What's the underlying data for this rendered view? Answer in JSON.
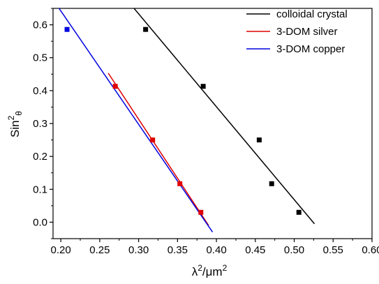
{
  "chart_data": {
    "type": "scatter",
    "x_axis": {
      "label_main": "λ",
      "label_sup1": "2",
      "label_mid": "/μm",
      "label_sup2": "2",
      "range": [
        0.19,
        0.6
      ],
      "ticks": [
        "0.20",
        "0.25",
        "0.30",
        "0.35",
        "0.40",
        "0.45",
        "0.50",
        "0.55",
        "0.60"
      ],
      "tick_values": [
        0.2,
        0.25,
        0.3,
        0.35,
        0.4,
        0.45,
        0.5,
        0.55,
        0.6
      ]
    },
    "y_axis": {
      "label_main": "Sin",
      "label_sup": "2",
      "label_sub": "θ",
      "range": [
        -0.05,
        0.65
      ],
      "ticks": [
        "0.0",
        "0.1",
        "0.2",
        "0.3",
        "0.4",
        "0.5",
        "0.6"
      ],
      "tick_values": [
        0.0,
        0.1,
        0.2,
        0.3,
        0.4,
        0.5,
        0.6
      ]
    },
    "legend_position": "top-right",
    "series": [
      {
        "name": "colloidal crystal",
        "color": "#000000",
        "points": [
          [
            0.309,
            0.586
          ],
          [
            0.383,
            0.413
          ],
          [
            0.455,
            0.25
          ],
          [
            0.471,
            0.117
          ],
          [
            0.506,
            0.03
          ]
        ],
        "fit_line": [
          [
            0.292,
            0.656
          ],
          [
            0.526,
            -0.005
          ]
        ]
      },
      {
        "name": "3-DOM silver",
        "color": "#e00000",
        "points": [
          [
            0.27,
            0.413
          ],
          [
            0.318,
            0.25
          ],
          [
            0.353,
            0.117
          ],
          [
            0.38,
            0.03
          ]
        ],
        "fit_line": [
          [
            0.261,
            0.453
          ],
          [
            0.39,
            -0.01
          ]
        ]
      },
      {
        "name": "3-DOM copper",
        "color": "#0000e0",
        "points": [
          [
            0.208,
            0.586
          ]
        ],
        "fit_line": [
          [
            0.196,
            0.656
          ],
          [
            0.395,
            -0.03
          ]
        ]
      }
    ]
  }
}
